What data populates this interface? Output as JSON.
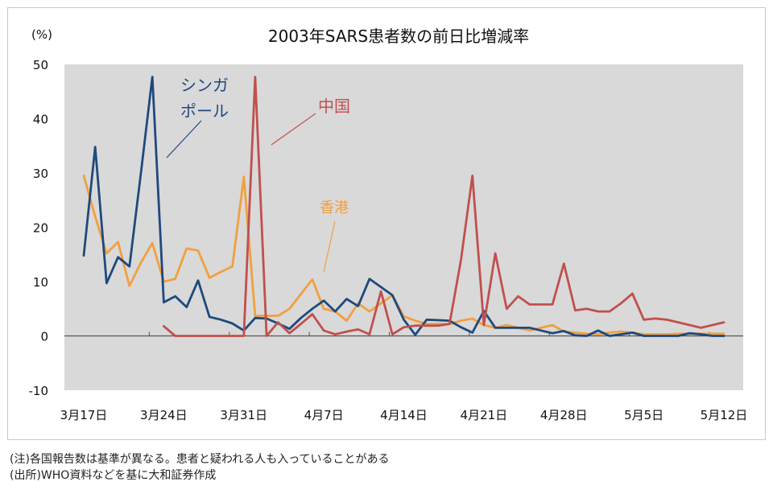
{
  "chart_data": {
    "type": "line",
    "title": "2003年SARS患者数の前日比増減率",
    "ylabel": "(%)",
    "ylim": [
      -10,
      50
    ],
    "yticks": [
      -10,
      0,
      10,
      20,
      30,
      40,
      50
    ],
    "xlim": [
      0,
      56
    ],
    "xticks": [
      {
        "x": 0,
        "label": "3月17日"
      },
      {
        "x": 7,
        "label": "3月24日"
      },
      {
        "x": 14,
        "label": "3月31日"
      },
      {
        "x": 21,
        "label": "4月7日"
      },
      {
        "x": 28,
        "label": "4月14日"
      },
      {
        "x": 35,
        "label": "4月21日"
      },
      {
        "x": 42,
        "label": "4月28日"
      },
      {
        "x": 49,
        "label": "5月5日"
      },
      {
        "x": 56,
        "label": "5月12日"
      }
    ],
    "series": [
      {
        "name": "香港",
        "color": "#F0A040",
        "x": [
          0,
          1,
          2,
          3,
          4,
          5,
          6,
          7,
          8,
          9,
          10,
          11,
          12,
          13,
          14,
          15,
          16,
          17,
          18,
          19,
          20,
          21,
          22,
          23,
          24,
          25,
          26,
          27,
          28,
          29,
          30,
          31,
          32,
          33,
          34,
          35,
          36,
          37,
          38,
          39,
          40,
          41,
          42,
          43,
          44,
          45,
          46,
          47,
          48,
          49,
          50,
          51,
          52,
          53,
          54,
          55,
          56
        ],
        "values": [
          29.5,
          22.0,
          15.2,
          17.3,
          9.2,
          13.5,
          17.1,
          10.0,
          10.5,
          16.1,
          15.7,
          10.7,
          11.8,
          12.8,
          29.3,
          3.7,
          3.7,
          3.7,
          5.0,
          7.7,
          10.4,
          5.0,
          4.5,
          2.8,
          6.0,
          4.5,
          6.0,
          7.5,
          3.6,
          2.8,
          2.2,
          2.2,
          2.2,
          2.8,
          3.2,
          2.0,
          1.5,
          2.0,
          1.5,
          1.0,
          1.5,
          2.0,
          0.8,
          0.6,
          0.4,
          0.3,
          0.6,
          0.8,
          0.6,
          0.3,
          0.3,
          0.3,
          0.4,
          0.4,
          0.4,
          0.4,
          0.4
        ]
      },
      {
        "name": "シンガポール",
        "color": "#1F497D",
        "x": [
          0,
          1,
          2,
          3,
          4,
          5,
          6,
          7,
          8,
          9,
          10,
          11,
          12,
          13,
          14,
          15,
          16,
          17,
          18,
          19,
          20,
          21,
          22,
          23,
          24,
          25,
          26,
          27,
          28,
          29,
          30,
          31,
          32,
          33,
          34,
          35,
          36,
          37,
          38,
          39,
          40,
          41,
          42,
          43,
          44,
          45,
          46,
          47,
          48,
          49,
          50,
          51,
          52,
          53,
          54,
          55,
          56
        ],
        "values": [
          14.8,
          34.8,
          9.7,
          14.5,
          12.8,
          30.0,
          47.7,
          6.2,
          7.3,
          5.3,
          10.2,
          3.5,
          3.0,
          2.3,
          1.0,
          3.3,
          3.2,
          2.3,
          1.3,
          3.3,
          5.0,
          6.5,
          4.5,
          6.8,
          5.5,
          10.5,
          9.0,
          7.5,
          3.0,
          0.2,
          3.0,
          2.9,
          2.8,
          1.6,
          0.6,
          4.6,
          1.5,
          1.5,
          1.5,
          1.5,
          1.0,
          0.5,
          0.9,
          0.1,
          0.0,
          1.0,
          0.0,
          0.3,
          0.6,
          0.0,
          0.0,
          0.0,
          0.0,
          0.5,
          0.3,
          0.0,
          0.0
        ]
      },
      {
        "name": "中国",
        "color": "#C0504D",
        "x": [
          7,
          8,
          9,
          10,
          11,
          12,
          13,
          14,
          15,
          16,
          17,
          18,
          19,
          20,
          21,
          22,
          23,
          24,
          25,
          26,
          27,
          28,
          29,
          30,
          31,
          32,
          33,
          34,
          35,
          36,
          37,
          38,
          39,
          40,
          41,
          42,
          43,
          44,
          45,
          46,
          47,
          48,
          49,
          50,
          51,
          52,
          53,
          54,
          55,
          56
        ],
        "values": [
          1.8,
          0.0,
          0.0,
          0.0,
          0.0,
          0.0,
          0.0,
          0.0,
          47.7,
          0.0,
          2.5,
          0.5,
          2.2,
          4.0,
          1.0,
          0.3,
          0.8,
          1.2,
          0.3,
          8.2,
          0.3,
          1.6,
          1.9,
          1.9,
          1.9,
          2.2,
          14.0,
          29.5,
          2.0,
          15.2,
          5.0,
          7.3,
          5.8,
          5.8,
          5.8,
          13.3,
          4.7,
          5.0,
          4.5,
          4.5,
          6.0,
          7.8,
          3.0,
          3.2,
          3.0,
          2.5,
          2.0,
          1.5,
          2.0,
          2.5
        ]
      }
    ],
    "labels": [
      {
        "series": "シンガポール",
        "lines": [
          "シンガ",
          "ポール"
        ]
      },
      {
        "series": "中国",
        "lines": [
          "中国"
        ]
      },
      {
        "series": "香港",
        "lines": [
          "香港"
        ]
      }
    ]
  },
  "notes": [
    "(注)各国報告数は基準が異なる。患者と疑われる人も入っていることがある",
    "(出所)WHO資料などを基に大和証券作成"
  ]
}
